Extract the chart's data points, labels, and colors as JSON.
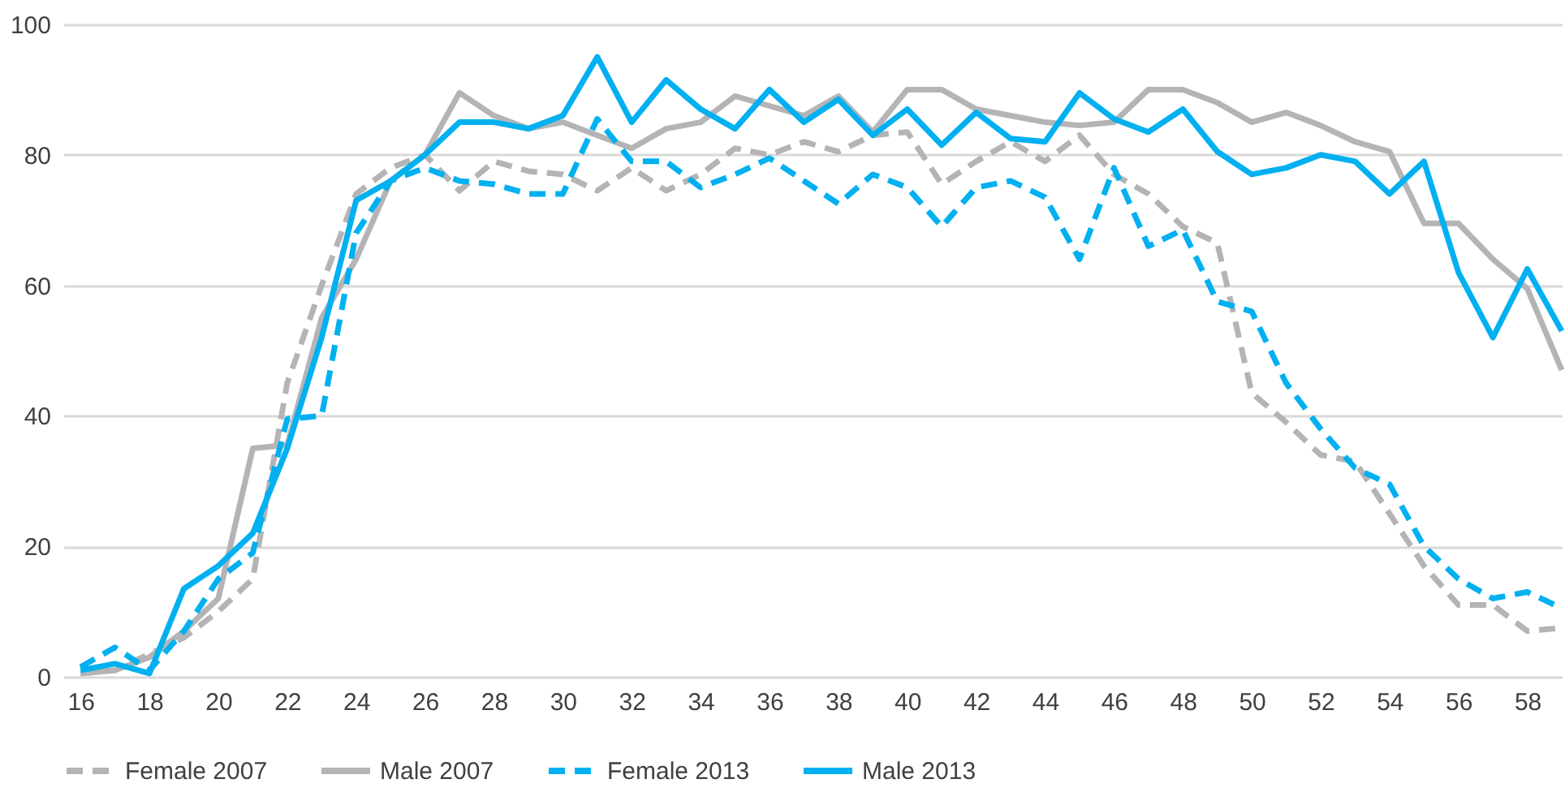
{
  "chart_data": {
    "type": "line",
    "x": [
      16,
      17,
      18,
      19,
      20,
      21,
      22,
      23,
      24,
      25,
      26,
      27,
      28,
      29,
      30,
      31,
      32,
      33,
      34,
      35,
      36,
      37,
      38,
      39,
      40,
      41,
      42,
      43,
      44,
      45,
      46,
      47,
      48,
      49,
      50,
      51,
      52,
      53,
      54,
      55,
      56,
      57,
      58,
      59
    ],
    "xlim": [
      15.5,
      59
    ],
    "xticks": [
      16,
      18,
      20,
      22,
      24,
      26,
      28,
      30,
      32,
      34,
      36,
      38,
      40,
      42,
      44,
      46,
      48,
      50,
      52,
      54,
      56,
      58
    ],
    "ylim": [
      0,
      100
    ],
    "yticks": [
      0,
      20,
      40,
      60,
      80,
      100
    ],
    "grid": "y",
    "legend": "bottom",
    "marker": "none",
    "series": [
      {
        "name": "Female 2007",
        "color": "#b4b4b6",
        "line_style": "dashed",
        "values": [
          0.5,
          1,
          3.5,
          6,
          10,
          15,
          45,
          60,
          74,
          78,
          80,
          74.5,
          79,
          77.5,
          77,
          74.5,
          78,
          74.5,
          77,
          81,
          80,
          82,
          80.5,
          83,
          83.5,
          75.5,
          79,
          82,
          79,
          83,
          77,
          74,
          69,
          66.5,
          43.5,
          39,
          34,
          33,
          25,
          17,
          11,
          11,
          7,
          7.5
        ]
      },
      {
        "name": "Male 2007",
        "color": "#b4b4b6",
        "line_style": "solid",
        "values": [
          0.5,
          1,
          3,
          7,
          12,
          35,
          35.5,
          55,
          64,
          76,
          80,
          89.5,
          86,
          84,
          85,
          83,
          81,
          84,
          85,
          89,
          87.5,
          86,
          89,
          83.5,
          90,
          90,
          87,
          86,
          85,
          84.5,
          85,
          90,
          90,
          88,
          85,
          86.5,
          84.5,
          82,
          80.5,
          69.5,
          69.5,
          64,
          59.5,
          47
        ]
      },
      {
        "name": "Female 2013",
        "color": "#00b0f0",
        "line_style": "dashed",
        "values": [
          1.5,
          4.5,
          1,
          7,
          15,
          19,
          39.5,
          40,
          68,
          76,
          78,
          76,
          75.5,
          74,
          74,
          85.5,
          79,
          79,
          75,
          77,
          79.5,
          76,
          72.5,
          77,
          75,
          69,
          75,
          76,
          73.5,
          64,
          78,
          66,
          68.5,
          57.5,
          56,
          45,
          38,
          32,
          29.5,
          20,
          15,
          12,
          13,
          10.5
        ]
      },
      {
        "name": "Male 2013",
        "color": "#00b0f0",
        "line_style": "solid",
        "values": [
          1,
          2,
          0.5,
          13.5,
          17,
          22,
          35,
          52,
          73,
          76,
          80,
          85,
          85,
          84,
          86,
          95,
          85,
          91.5,
          87,
          84,
          90,
          85,
          88.5,
          83,
          87,
          81.5,
          86.5,
          82.5,
          82,
          89.5,
          85.5,
          83.5,
          87,
          80.5,
          77,
          78,
          80,
          79,
          74,
          79,
          62,
          52,
          62.5,
          53
        ]
      }
    ]
  }
}
